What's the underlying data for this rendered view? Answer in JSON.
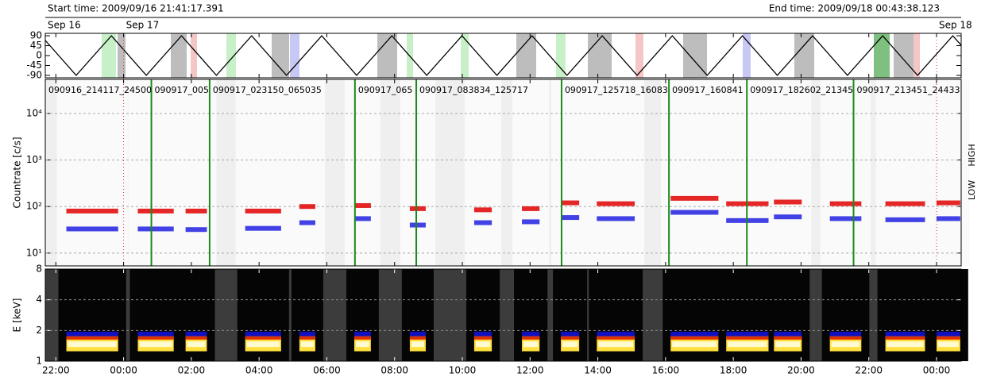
{
  "header": {
    "start_time": "Start time: 2009/09/16 21:41:17.391",
    "end_time": "End time: 2009/09/18 00:43:38.123",
    "start_day": "Sep 16"
  },
  "time_axis": {
    "xlim": [
      21.688,
      48.727
    ],
    "xticks": [
      {
        "value": 22,
        "label": "22:00"
      },
      {
        "value": 24,
        "label": "00:00"
      },
      {
        "value": 26,
        "label": "02:00"
      },
      {
        "value": 28,
        "label": "04:00"
      },
      {
        "value": 30,
        "label": "06:00"
      },
      {
        "value": 32,
        "label": "08:00"
      },
      {
        "value": 34,
        "label": "10:00"
      },
      {
        "value": 36,
        "label": "12:00"
      },
      {
        "value": 38,
        "label": "14:00"
      },
      {
        "value": 40,
        "label": "16:00"
      },
      {
        "value": 42,
        "label": "18:00"
      },
      {
        "value": 44,
        "label": "20:00"
      },
      {
        "value": 46,
        "label": "22:00"
      },
      {
        "value": 48,
        "label": "00:00"
      }
    ],
    "day_markers": [
      {
        "value": 24,
        "label": "Sep 17"
      },
      {
        "value": 48,
        "label": "Sep 18"
      }
    ],
    "segments": [
      [
        22.31,
        23.84
      ],
      [
        24.42,
        25.48
      ],
      [
        25.83,
        26.46
      ],
      [
        27.59,
        28.65
      ],
      [
        29.19,
        29.66
      ],
      [
        30.81,
        31.3
      ],
      [
        32.45,
        32.92
      ],
      [
        34.35,
        34.87
      ],
      [
        35.76,
        36.28
      ],
      [
        36.91,
        37.45
      ],
      [
        37.97,
        39.09
      ],
      [
        40.15,
        41.56
      ],
      [
        41.79,
        43.04
      ],
      [
        43.2,
        44.02
      ],
      [
        44.85,
        45.78
      ],
      [
        46.49,
        47.66
      ],
      [
        48.0,
        48.7
      ]
    ],
    "boundaries": [
      24.82,
      26.54,
      30.83,
      32.64,
      36.93,
      40.1,
      42.4,
      45.55
    ],
    "file_labels": [
      "090916_214117_24500",
      "090917_005",
      "090917_023150_065035",
      "090917_065",
      "090917_083834_125717",
      "090917_125718_16083",
      "090917_160841",
      "090917_182602_21345",
      "090917_213451_24433"
    ]
  },
  "chart_data": [
    {
      "type": "line",
      "ylim": [
        -101,
        101
      ],
      "yticks": [
        90,
        45,
        0,
        -45,
        -90
      ],
      "color": "#000000",
      "x": [
        21.688,
        22.6,
        23.64,
        24.67,
        25.71,
        26.74,
        27.78,
        28.81,
        29.85,
        30.88,
        31.92,
        32.95,
        33.99,
        35.02,
        36.06,
        37.09,
        38.13,
        39.16,
        40.2,
        41.23,
        42.27,
        43.3,
        44.34,
        45.37,
        46.41,
        47.44,
        48.48,
        48.727
      ],
      "values": [
        69,
        -90,
        90,
        -90,
        90,
        -90,
        90,
        -90,
        90,
        -90,
        90,
        -90,
        90,
        -90,
        90,
        -90,
        90,
        -90,
        90,
        -90,
        90,
        -90,
        90,
        -90,
        90,
        -90,
        90,
        47
      ]
    },
    {
      "type": "scatter",
      "y_label": "Countrate [c/s]",
      "log_y": true,
      "grid": true,
      "ylim": [
        5.3,
        54000
      ],
      "yticks": [
        {
          "value": 10,
          "label": "10¹"
        },
        {
          "value": 100,
          "label": "10²"
        },
        {
          "value": 1000,
          "label": "10³"
        },
        {
          "value": 10000,
          "label": "10⁴"
        }
      ],
      "series": [
        {
          "name": "LOW",
          "color": "#e00000",
          "values": [
            80,
            80,
            80,
            80,
            100,
            105,
            90,
            85,
            90,
            120,
            115,
            150,
            115,
            125,
            115,
            115,
            120
          ]
        },
        {
          "name": "HIGH",
          "color": "#2020e0",
          "values": [
            33,
            33,
            32,
            34,
            45,
            55,
            40,
            45,
            47,
            58,
            55,
            75,
            50,
            60,
            55,
            52,
            55
          ]
        }
      ]
    },
    {
      "type": "heatmap",
      "y_label": "E [keV]",
      "log_y": true,
      "ylim": [
        1,
        8
      ],
      "yticks": [
        1,
        2,
        4,
        8
      ],
      "band": [
        1.25,
        1.75
      ]
    }
  ]
}
